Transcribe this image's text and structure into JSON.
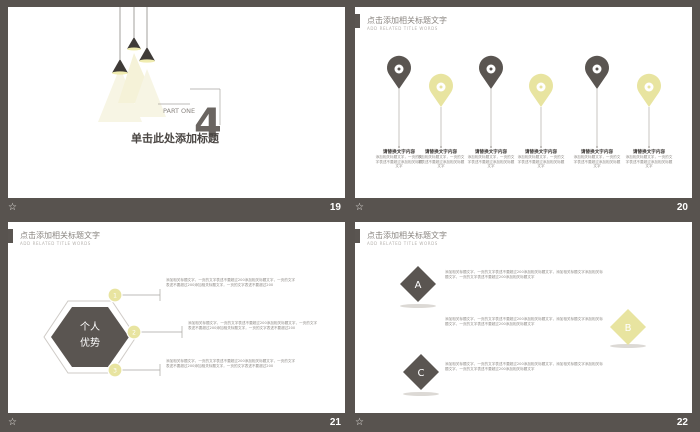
{
  "colors": {
    "background": "#58534f",
    "dark": "#5a5551",
    "accent": "#e8e4a0"
  },
  "slide19": {
    "part_label": "PART ONE",
    "number": "4",
    "title": "单击此处添加标题",
    "slide_number": "19"
  },
  "slide20": {
    "title": "点击添加相关标题文字",
    "subtitle": "ADD RELATED TITLE WORDS",
    "slide_number": "20",
    "pins": [
      {
        "heading": "请替换文字内容",
        "body": "添加相关标题文字，一页的文字表述不要超过添加相关标题文字",
        "color": "dark"
      },
      {
        "heading": "请替换文字内容",
        "body": "添加相关标题文字，一页的文字表述不要超过添加相关标题文字",
        "color": "accent"
      },
      {
        "heading": "请替换文字内容",
        "body": "添加相关标题文字，一页的文字表述不要超过添加相关标题文字",
        "color": "dark"
      },
      {
        "heading": "请替换文字内容",
        "body": "添加相关标题文字，一页的文字表述不要超过添加相关标题文字",
        "color": "accent"
      },
      {
        "heading": "请替换文字内容",
        "body": "添加相关标题文字，一页的文字表述不要超过添加相关标题文字",
        "color": "dark"
      },
      {
        "heading": "请替换文字内容",
        "body": "添加相关标题文字，一页的文字表述不要超过添加相关标题文字",
        "color": "accent"
      }
    ]
  },
  "slide21": {
    "title": "点击添加相关标题文字",
    "subtitle": "ADD RELATED TITLE WORDS",
    "slide_number": "21",
    "hex_line1": "个人",
    "hex_line2": "优势",
    "items": [
      {
        "num": "1",
        "text": "添加相关标题文字，一页的文字表述不要超过200添加相关标题文字，一页的文字表述不要超过200添加相关标题文字，一页的文字表述不要超过200"
      },
      {
        "num": "2",
        "text": "添加相关标题文字，一页的文字表述不要超过200添加相关标题文字，一页的文字表述不要超过200添加相关标题文字，一页的文字表述不要超过200"
      },
      {
        "num": "3",
        "text": "添加相关标题文字，一页的文字表述不要超过200添加相关标题文字，一页的文字表述不要超过200添加相关标题文字，一页的文字表述不要超过200"
      }
    ]
  },
  "slide22": {
    "title": "点击添加相关标题文字",
    "subtitle": "ADD RELATED TITLE WORDS",
    "slide_number": "22",
    "a_label": "A",
    "b_label": "B",
    "c_label": "C",
    "a_text": "添加相关标题文字，一页的文字表述不要超过200添加相关标题文字，添加相关标题文字添加相关标题文字，一页的文字表述不要超过200添加相关标题文字",
    "b_text": "添加相关标题文字，一页的文字表述不要超过200添加相关标题文字，添加相关标题文字添加相关标题文字，一页的文字表述不要超过200添加相关标题文字",
    "c_text": "添加相关标题文字，一页的文字表述不要超过200添加相关标题文字，添加相关标题文字添加相关标题文字，一页的文字表述不要超过200添加相关标题文字"
  }
}
